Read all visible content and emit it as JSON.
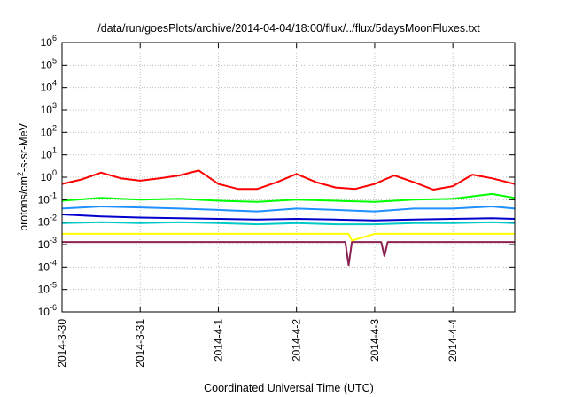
{
  "chart_data": {
    "type": "line",
    "title": "/data/run/goesPlots/archive/2014-04-04/18:00/flux/../flux/5daysMoonFluxes.txt",
    "xlabel": "Coordinated Universal Time (UTC)",
    "ylabel": {
      "prefix": "protons/cm",
      "exp": "2",
      "suffix": "-s-sr-MeV"
    },
    "y_scale": "log",
    "ylim": [
      1e-06,
      1000000.0
    ],
    "y_ticks": [
      {
        "value": 1000000.0,
        "base": "10",
        "exp": "6"
      },
      {
        "value": 100000.0,
        "base": "10",
        "exp": "5"
      },
      {
        "value": 10000.0,
        "base": "10",
        "exp": "4"
      },
      {
        "value": 1000.0,
        "base": "10",
        "exp": "3"
      },
      {
        "value": 100.0,
        "base": "10",
        "exp": "2"
      },
      {
        "value": 10.0,
        "base": "10",
        "exp": "1"
      },
      {
        "value": 1.0,
        "base": "10",
        "exp": "0"
      },
      {
        "value": 0.1,
        "base": "10",
        "exp": "-1"
      },
      {
        "value": 0.01,
        "base": "10",
        "exp": "-2"
      },
      {
        "value": 0.001,
        "base": "10",
        "exp": "-3"
      },
      {
        "value": 0.0001,
        "base": "10",
        "exp": "-4"
      },
      {
        "value": 1e-05,
        "base": "10",
        "exp": "-5"
      },
      {
        "value": 1e-06,
        "base": "10",
        "exp": "-6"
      }
    ],
    "xlim": [
      "2014-03-30T00:00",
      "2014-04-04T19:00"
    ],
    "x_ticks": [
      {
        "label": "2014-3-30",
        "value": "2014-03-30T00:00"
      },
      {
        "label": "2014-3-31",
        "value": "2014-03-31T00:00"
      },
      {
        "label": "2014-4-1",
        "value": "2014-04-01T00:00"
      },
      {
        "label": "2014-4-2",
        "value": "2014-04-02T00:00"
      },
      {
        "label": "2014-4-3",
        "value": "2014-04-03T00:00"
      },
      {
        "label": "2014-4-4",
        "value": "2014-04-04T00:00"
      }
    ],
    "grid": true,
    "series": [
      {
        "color": "#ff0000",
        "x": [
          "2014-03-30T00:00",
          "2014-03-30T06:00",
          "2014-03-30T12:00",
          "2014-03-30T18:00",
          "2014-03-31T00:00",
          "2014-03-31T06:00",
          "2014-03-31T12:00",
          "2014-03-31T18:00",
          "2014-04-01T00:00",
          "2014-04-01T06:00",
          "2014-04-01T12:00",
          "2014-04-01T18:00",
          "2014-04-02T00:00",
          "2014-04-02T06:00",
          "2014-04-02T12:00",
          "2014-04-02T18:00",
          "2014-04-03T00:00",
          "2014-04-03T06:00",
          "2014-04-03T12:00",
          "2014-04-03T18:00",
          "2014-04-04T00:00",
          "2014-04-04T06:00",
          "2014-04-04T12:00",
          "2014-04-04T19:00"
        ],
        "y": [
          0.5,
          0.8,
          1.6,
          0.9,
          0.7,
          0.9,
          1.2,
          2.0,
          0.5,
          0.3,
          0.3,
          0.6,
          1.4,
          0.6,
          0.35,
          0.3,
          0.5,
          1.2,
          0.6,
          0.28,
          0.4,
          1.3,
          0.9,
          0.5
        ]
      },
      {
        "color": "#00ff00",
        "x": [
          "2014-03-30T00:00",
          "2014-03-30T12:00",
          "2014-03-31T00:00",
          "2014-03-31T12:00",
          "2014-04-01T00:00",
          "2014-04-01T12:00",
          "2014-04-02T00:00",
          "2014-04-02T12:00",
          "2014-04-03T00:00",
          "2014-04-03T12:00",
          "2014-04-04T00:00",
          "2014-04-04T12:00",
          "2014-04-04T19:00"
        ],
        "y": [
          0.09,
          0.12,
          0.1,
          0.11,
          0.09,
          0.08,
          0.1,
          0.09,
          0.08,
          0.1,
          0.11,
          0.18,
          0.12
        ]
      },
      {
        "color": "#1e90ff",
        "x": [
          "2014-03-30T00:00",
          "2014-03-30T12:00",
          "2014-03-31T00:00",
          "2014-03-31T12:00",
          "2014-04-01T00:00",
          "2014-04-01T12:00",
          "2014-04-02T00:00",
          "2014-04-02T12:00",
          "2014-04-03T00:00",
          "2014-04-03T12:00",
          "2014-04-04T00:00",
          "2014-04-04T12:00",
          "2014-04-04T19:00"
        ],
        "y": [
          0.04,
          0.05,
          0.045,
          0.04,
          0.035,
          0.03,
          0.04,
          0.035,
          0.03,
          0.04,
          0.04,
          0.05,
          0.04
        ]
      },
      {
        "color": "#0000cd",
        "x": [
          "2014-03-30T00:00",
          "2014-03-30T12:00",
          "2014-03-31T00:00",
          "2014-03-31T12:00",
          "2014-04-01T00:00",
          "2014-04-01T12:00",
          "2014-04-02T00:00",
          "2014-04-02T12:00",
          "2014-04-03T00:00",
          "2014-04-03T12:00",
          "2014-04-04T00:00",
          "2014-04-04T12:00",
          "2014-04-04T19:00"
        ],
        "y": [
          0.022,
          0.018,
          0.016,
          0.015,
          0.014,
          0.013,
          0.014,
          0.013,
          0.012,
          0.013,
          0.014,
          0.015,
          0.014
        ]
      },
      {
        "color": "#00c8c8",
        "x": [
          "2014-03-30T00:00",
          "2014-03-30T12:00",
          "2014-03-31T00:00",
          "2014-03-31T12:00",
          "2014-04-01T00:00",
          "2014-04-01T12:00",
          "2014-04-02T00:00",
          "2014-04-02T12:00",
          "2014-04-03T00:00",
          "2014-04-03T12:00",
          "2014-04-04T00:00",
          "2014-04-04T12:00",
          "2014-04-04T19:00"
        ],
        "y": [
          0.009,
          0.01,
          0.009,
          0.01,
          0.009,
          0.008,
          0.009,
          0.008,
          0.008,
          0.009,
          0.009,
          0.01,
          0.009
        ]
      },
      {
        "color": "#ffff00",
        "x": [
          "2014-03-30T00:00",
          "2014-03-31T00:00",
          "2014-04-01T00:00",
          "2014-04-02T00:00",
          "2014-04-02T16:00",
          "2014-04-02T17:00",
          "2014-04-03T00:00",
          "2014-04-04T00:00",
          "2014-04-04T19:00"
        ],
        "y": [
          0.003,
          0.003,
          0.003,
          0.003,
          0.003,
          0.0015,
          0.003,
          0.003,
          0.003
        ]
      },
      {
        "color": "#8b2252",
        "x": [
          "2014-03-30T00:00",
          "2014-03-31T00:00",
          "2014-04-01T00:00",
          "2014-04-02T00:00",
          "2014-04-02T15:00",
          "2014-04-02T16:00",
          "2014-04-02T17:00",
          "2014-04-03T00:00",
          "2014-04-03T02:00",
          "2014-04-03T03:00",
          "2014-04-03T04:00",
          "2014-04-04T00:00",
          "2014-04-04T19:00"
        ],
        "y": [
          0.0013,
          0.0013,
          0.0013,
          0.0013,
          0.0013,
          0.00012,
          0.0013,
          0.0013,
          0.0013,
          0.0003,
          0.0013,
          0.0013,
          0.0013
        ]
      }
    ]
  }
}
